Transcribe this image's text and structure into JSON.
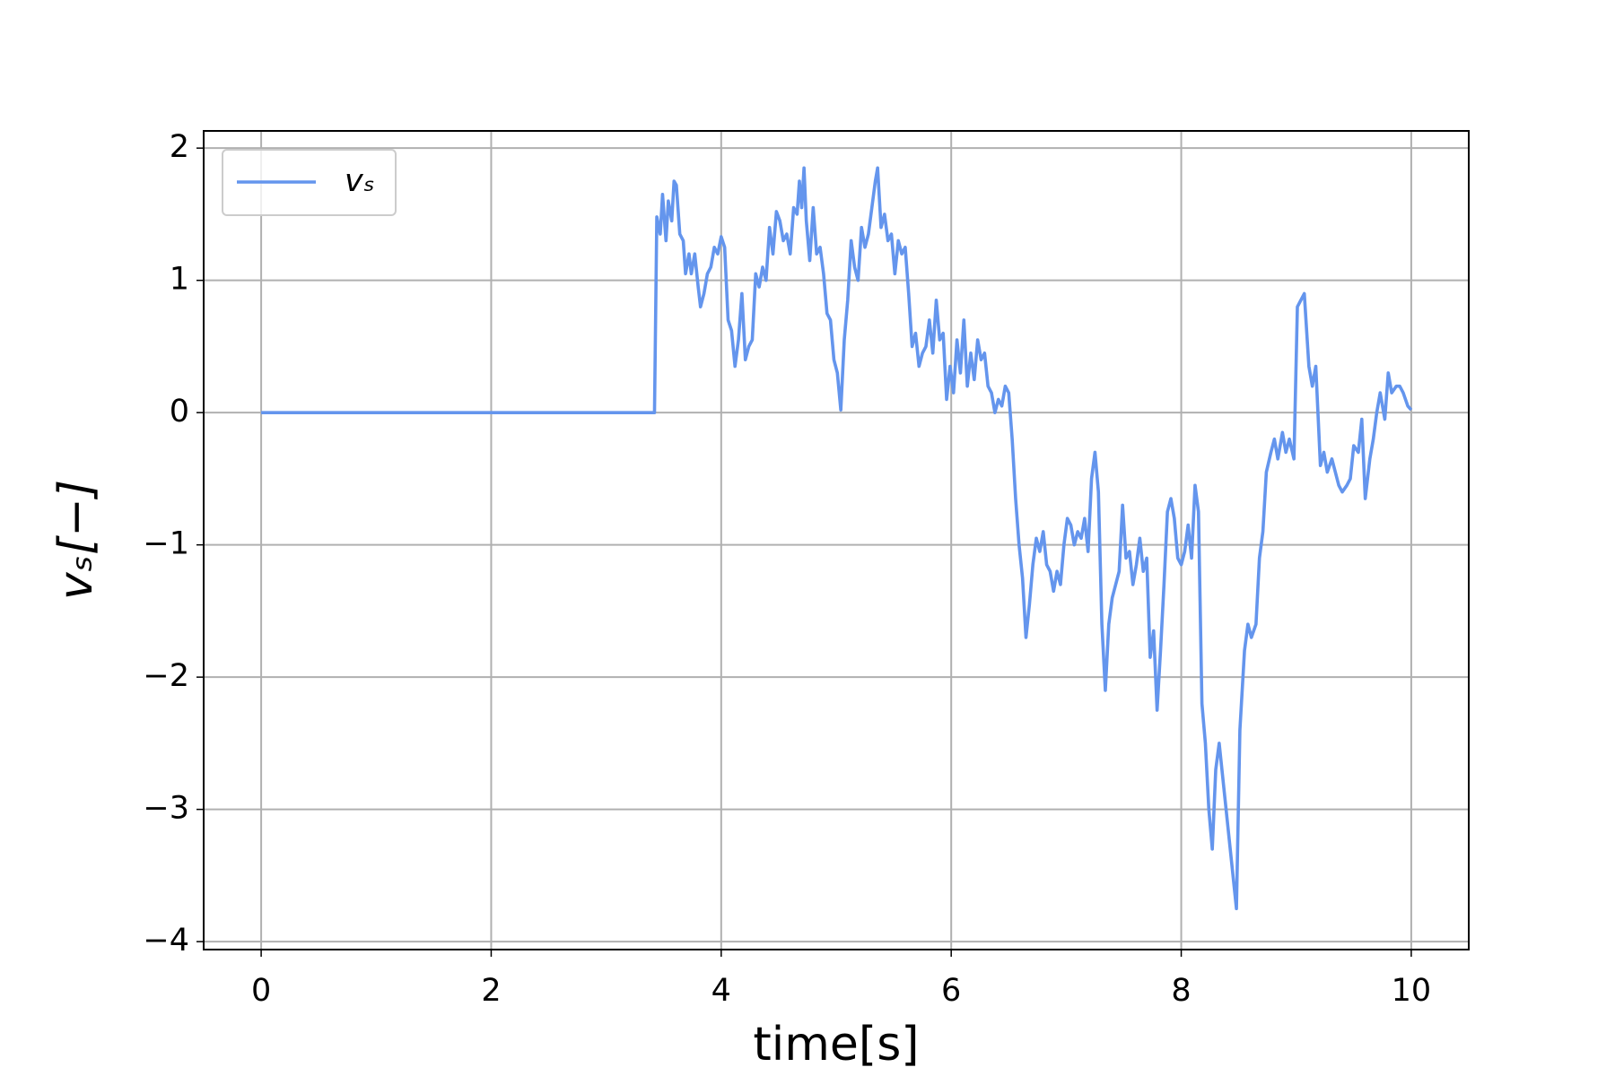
{
  "chart_data": {
    "type": "line",
    "xlabel": "time[s]",
    "ylabel": "vₛ[−]",
    "xlim": [
      -0.5,
      10.5
    ],
    "ylim": [
      -4.06,
      2.13
    ],
    "xticks": [
      0,
      2,
      4,
      6,
      8,
      10
    ],
    "yticks": [
      {
        "value": -4,
        "label": "−4"
      },
      {
        "value": -3,
        "label": "−3"
      },
      {
        "value": -2,
        "label": "−2"
      },
      {
        "value": -1,
        "label": "−1"
      },
      0,
      1,
      2
    ],
    "grid": true,
    "legend": "upper left",
    "x": [
      0,
      3.42,
      3.44,
      3.47,
      3.49,
      3.52,
      3.54,
      3.57,
      3.59,
      3.61,
      3.64,
      3.67,
      3.69,
      3.72,
      3.74,
      3.77,
      3.8,
      3.82,
      3.85,
      3.88,
      3.91,
      3.94,
      3.97,
      4.0,
      4.03,
      4.06,
      4.09,
      4.12,
      4.15,
      4.18,
      4.21,
      4.24,
      4.27,
      4.3,
      4.33,
      4.36,
      4.39,
      4.42,
      4.45,
      4.48,
      4.51,
      4.54,
      4.57,
      4.6,
      4.63,
      4.66,
      4.68,
      4.7,
      4.72,
      4.74,
      4.77,
      4.8,
      4.83,
      4.86,
      4.89,
      4.92,
      4.95,
      4.98,
      5.01,
      5.04,
      5.07,
      5.1,
      5.13,
      5.16,
      5.19,
      5.22,
      5.25,
      5.28,
      5.31,
      5.34,
      5.36,
      5.39,
      5.42,
      5.45,
      5.48,
      5.51,
      5.54,
      5.57,
      5.6,
      5.63,
      5.66,
      5.69,
      5.72,
      5.75,
      5.78,
      5.81,
      5.84,
      5.87,
      5.9,
      5.93,
      5.96,
      5.99,
      6.02,
      6.05,
      6.08,
      6.11,
      6.14,
      6.17,
      6.2,
      6.23,
      6.26,
      6.29,
      6.32,
      6.35,
      6.38,
      6.41,
      6.44,
      6.47,
      6.5,
      6.53,
      6.56,
      6.59,
      6.62,
      6.65,
      6.68,
      6.71,
      6.74,
      6.77,
      6.8,
      6.83,
      6.86,
      6.89,
      6.92,
      6.95,
      6.98,
      7.01,
      7.04,
      7.07,
      7.1,
      7.13,
      7.16,
      7.19,
      7.22,
      7.25,
      7.28,
      7.31,
      7.34,
      7.37,
      7.4,
      7.43,
      7.46,
      7.49,
      7.52,
      7.55,
      7.58,
      7.61,
      7.64,
      7.67,
      7.7,
      7.73,
      7.76,
      7.79,
      7.82,
      7.85,
      7.88,
      7.91,
      7.94,
      7.97,
      8.0,
      8.03,
      8.06,
      8.09,
      8.12,
      8.15,
      8.18,
      8.21,
      8.24,
      8.27,
      8.3,
      8.33,
      8.48,
      8.51,
      8.55,
      8.58,
      8.61,
      8.65,
      8.68,
      8.71,
      8.74,
      8.78,
      8.81,
      8.84,
      8.88,
      8.91,
      8.94,
      8.98,
      9.01,
      9.04,
      9.07,
      9.11,
      9.14,
      9.17,
      9.21,
      9.24,
      9.27,
      9.31,
      9.34,
      9.37,
      9.4,
      9.44,
      9.47,
      9.5,
      9.54,
      9.57,
      9.6,
      9.64,
      9.67,
      9.7,
      9.73,
      9.77,
      9.8,
      9.83,
      9.87,
      9.9,
      9.93,
      9.97,
      10.0
    ],
    "series": [
      {
        "name": "vₛ",
        "color": "#6495ed",
        "values": [
          0,
          0,
          1.48,
          1.35,
          1.65,
          1.3,
          1.6,
          1.45,
          1.75,
          1.72,
          1.35,
          1.3,
          1.05,
          1.2,
          1.05,
          1.2,
          0.95,
          0.8,
          0.9,
          1.05,
          1.1,
          1.25,
          1.2,
          1.33,
          1.25,
          0.7,
          0.62,
          0.35,
          0.55,
          0.9,
          0.4,
          0.5,
          0.55,
          1.05,
          0.95,
          1.1,
          1.0,
          1.4,
          1.2,
          1.52,
          1.45,
          1.3,
          1.35,
          1.2,
          1.55,
          1.5,
          1.75,
          1.55,
          1.85,
          1.45,
          1.15,
          1.55,
          1.2,
          1.25,
          1.05,
          0.75,
          0.7,
          0.4,
          0.3,
          0.02,
          0.55,
          0.85,
          1.3,
          1.1,
          1.0,
          1.4,
          1.25,
          1.35,
          1.55,
          1.75,
          1.85,
          1.4,
          1.5,
          1.3,
          1.35,
          1.05,
          1.3,
          1.2,
          1.25,
          0.9,
          0.5,
          0.6,
          0.35,
          0.45,
          0.5,
          0.7,
          0.45,
          0.85,
          0.55,
          0.6,
          0.1,
          0.35,
          0.15,
          0.55,
          0.3,
          0.7,
          0.2,
          0.45,
          0.25,
          0.55,
          0.4,
          0.45,
          0.2,
          0.15,
          0.0,
          0.1,
          0.05,
          0.2,
          0.15,
          -0.2,
          -0.65,
          -1.0,
          -1.25,
          -1.7,
          -1.45,
          -1.15,
          -0.95,
          -1.05,
          -0.9,
          -1.15,
          -1.2,
          -1.35,
          -1.2,
          -1.3,
          -1.0,
          -0.8,
          -0.85,
          -1.0,
          -0.9,
          -0.95,
          -0.8,
          -1.05,
          -0.5,
          -0.3,
          -0.6,
          -1.6,
          -2.1,
          -1.6,
          -1.4,
          -1.3,
          -1.2,
          -0.7,
          -1.1,
          -1.05,
          -1.3,
          -1.15,
          -0.95,
          -1.2,
          -1.1,
          -1.85,
          -1.65,
          -2.25,
          -1.8,
          -1.3,
          -0.75,
          -0.65,
          -0.8,
          -1.1,
          -1.15,
          -1.05,
          -0.85,
          -1.1,
          -0.55,
          -0.75,
          -2.2,
          -2.5,
          -3.0,
          -3.3,
          -2.7,
          -2.5,
          -3.75,
          -2.4,
          -1.8,
          -1.6,
          -1.7,
          -1.6,
          -1.1,
          -0.9,
          -0.45,
          -0.3,
          -0.2,
          -0.35,
          -0.15,
          -0.3,
          -0.2,
          -0.35,
          0.8,
          0.85,
          0.9,
          0.35,
          0.2,
          0.35,
          -0.4,
          -0.3,
          -0.45,
          -0.35,
          -0.45,
          -0.55,
          -0.6,
          -0.55,
          -0.5,
          -0.25,
          -0.3,
          -0.05,
          -0.65,
          -0.35,
          -0.2,
          0.0,
          0.15,
          -0.05,
          0.3,
          0.15,
          0.2,
          0.2,
          0.15,
          0.05,
          0.02
        ]
      }
    ]
  }
}
